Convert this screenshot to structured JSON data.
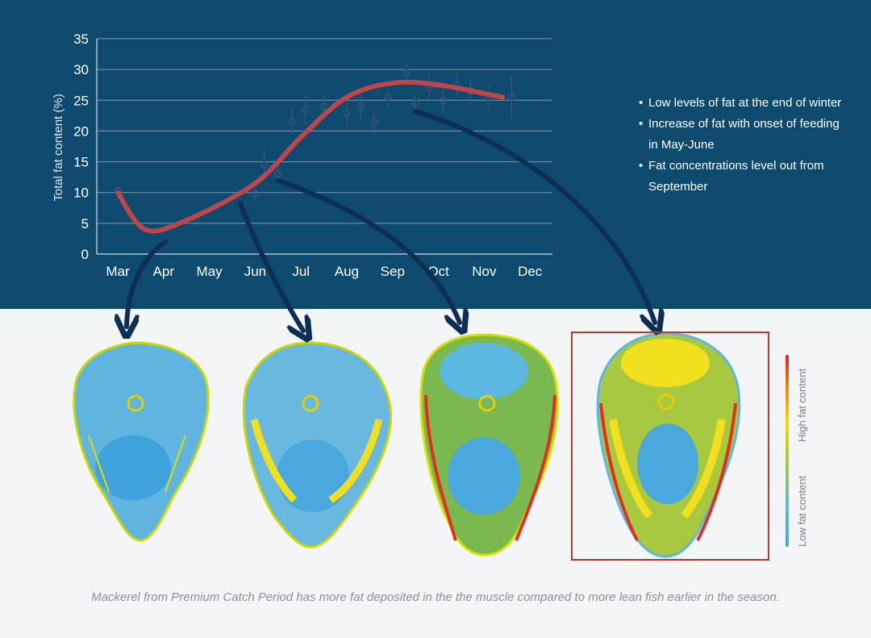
{
  "chart_data": {
    "type": "line",
    "ylabel": "Total fat content (%)",
    "xlabel": "",
    "title": "",
    "categories": [
      "Mar",
      "Apr",
      "May",
      "Jun",
      "Jul",
      "Aug",
      "Sep",
      "Oct",
      "Nov",
      "Dec"
    ],
    "yticks": [
      "0",
      "5",
      "10",
      "15",
      "20",
      "25",
      "30",
      "35"
    ],
    "ylim": [
      0,
      35
    ],
    "grid": true,
    "trend": [
      {
        "x": 0.0,
        "y": 10.0
      },
      {
        "x": 0.6,
        "y": 4.0
      },
      {
        "x": 1.5,
        "y": 5.5
      },
      {
        "x": 3.0,
        "y": 11.5
      },
      {
        "x": 4.0,
        "y": 19.0
      },
      {
        "x": 5.0,
        "y": 25.5
      },
      {
        "x": 6.0,
        "y": 27.8
      },
      {
        "x": 7.0,
        "y": 27.5
      },
      {
        "x": 8.4,
        "y": 25.5
      }
    ],
    "points": [
      {
        "x": 0.0,
        "y": 10.3,
        "err": 0.5
      },
      {
        "x": 3.0,
        "y": 9.8,
        "err": 1.0
      },
      {
        "x": 3.2,
        "y": 14.5,
        "err": 2.5
      },
      {
        "x": 3.5,
        "y": 13.0,
        "err": 1.5
      },
      {
        "x": 3.8,
        "y": 21.5,
        "err": 2.0
      },
      {
        "x": 4.1,
        "y": 23.5,
        "err": 2.5
      },
      {
        "x": 4.5,
        "y": 24.0,
        "err": 2.0
      },
      {
        "x": 5.0,
        "y": 23.0,
        "err": 2.0
      },
      {
        "x": 5.3,
        "y": 24.0,
        "err": 2.5
      },
      {
        "x": 5.6,
        "y": 21.5,
        "err": 2.0
      },
      {
        "x": 5.9,
        "y": 25.5,
        "err": 1.5
      },
      {
        "x": 6.3,
        "y": 29.5,
        "err": 1.5
      },
      {
        "x": 6.5,
        "y": 24.5,
        "err": 1.5
      },
      {
        "x": 6.8,
        "y": 27.0,
        "err": 2.0
      },
      {
        "x": 7.1,
        "y": 25.0,
        "err": 2.0
      },
      {
        "x": 7.4,
        "y": 27.5,
        "err": 2.0
      },
      {
        "x": 7.7,
        "y": 26.5,
        "err": 2.0
      },
      {
        "x": 8.1,
        "y": 25.5,
        "err": 2.0
      },
      {
        "x": 8.6,
        "y": 25.5,
        "err": 3.5
      }
    ],
    "annotations": [
      "Low levels of fat at the end of winter",
      "Increase of fat with onset of feeding in May-June",
      "Fat concentrations level out from September"
    ]
  },
  "legend": {
    "high": "High fat content",
    "low": "Low fat content"
  },
  "caption": "Mackerel from Premium Catch Period has more fat deposited in the the muscle compared to more lean fish earlier in the season.",
  "colors": {
    "background": "#0e4a6e",
    "trend": "#c0454a",
    "arrow": "#0e2f55",
    "points": "#3a5878",
    "highlight": "#b83a2a"
  }
}
